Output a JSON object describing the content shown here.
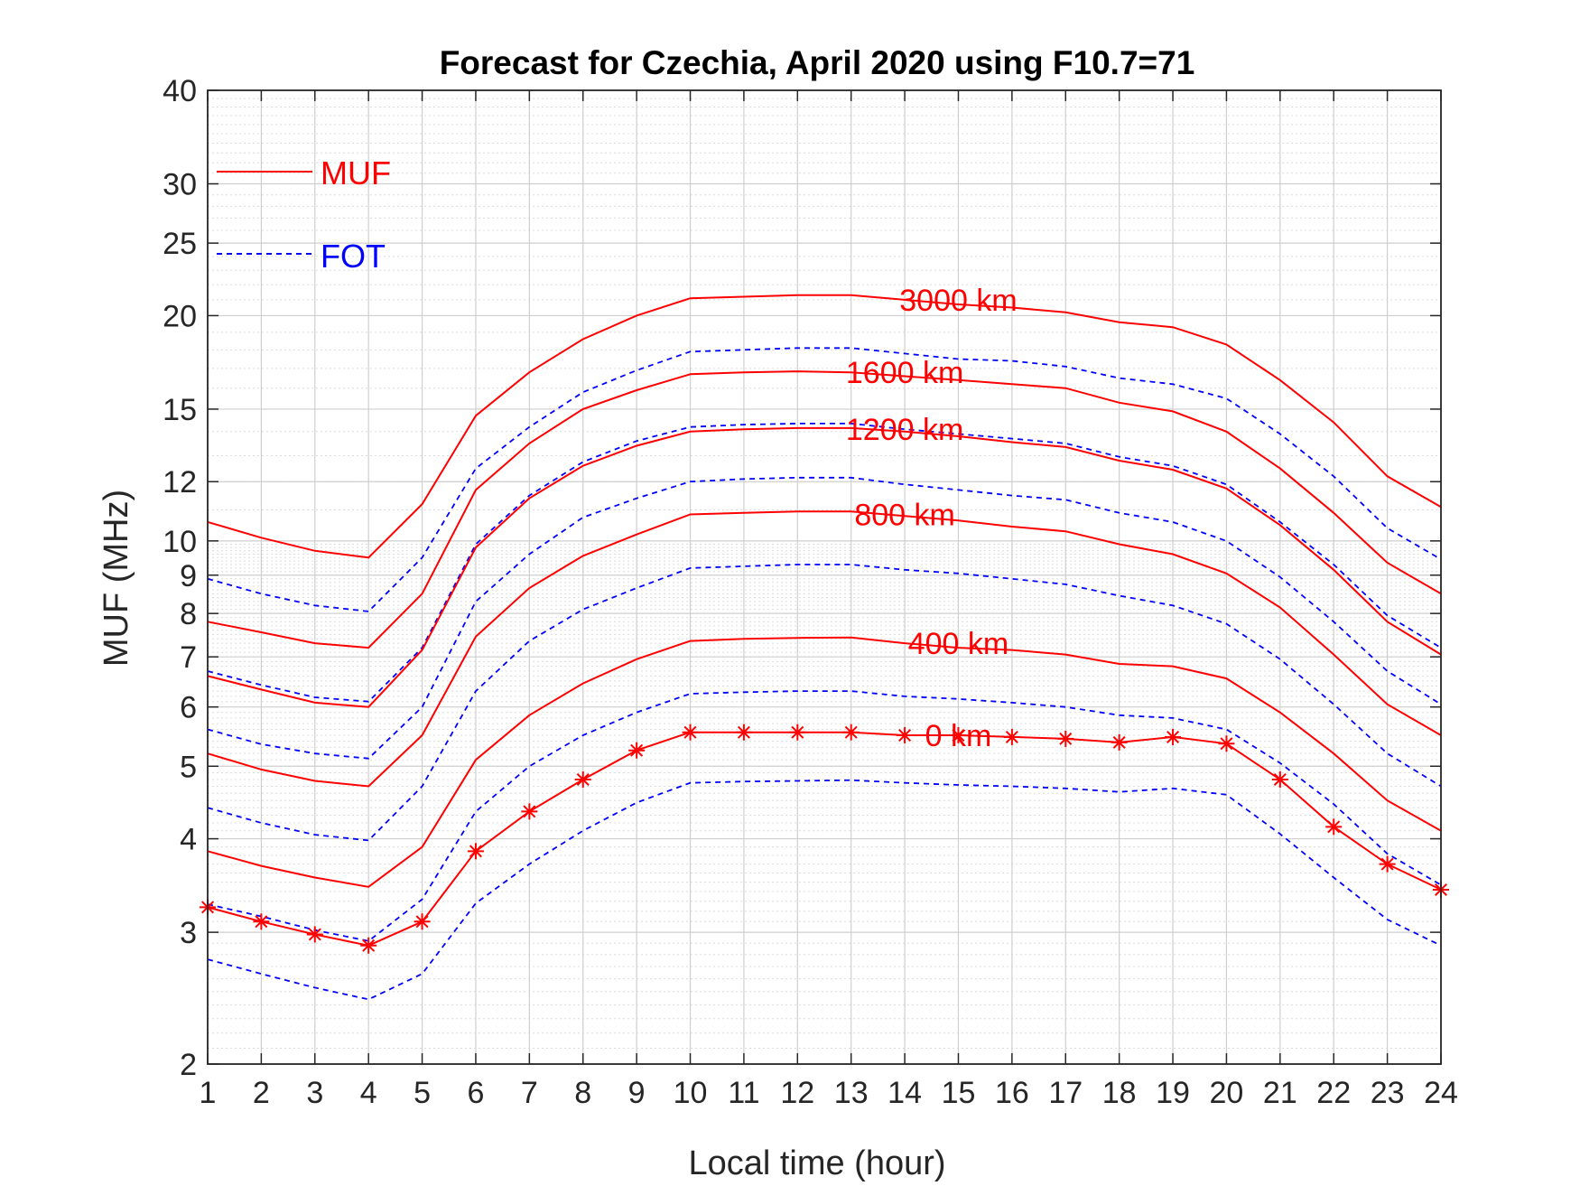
{
  "chart_data": {
    "type": "line",
    "title": "Forecast for Czechia, April 2020 using F10.7=71",
    "xlabel": "Local time (hour)",
    "ylabel": "MUF (MHz)",
    "x_scale": "linear",
    "y_scale": "log",
    "xlim": [
      1,
      24
    ],
    "ylim": [
      2,
      40
    ],
    "x_ticks": [
      "1",
      "2",
      "3",
      "4",
      "5",
      "6",
      "7",
      "8",
      "9",
      "10",
      "11",
      "12",
      "13",
      "14",
      "15",
      "16",
      "17",
      "18",
      "19",
      "20",
      "21",
      "22",
      "23",
      "24"
    ],
    "y_ticks": [
      "2",
      "3",
      "4",
      "5",
      "6",
      "7",
      "8",
      "9",
      "10",
      "12",
      "15",
      "20",
      "25",
      "30",
      "40"
    ],
    "grid": true,
    "minor_grid": true,
    "legend": {
      "placement": "top-left",
      "entries": [
        {
          "label": "MUF",
          "color": "#ff0000",
          "style": "solid"
        },
        {
          "label": "FOT",
          "color": "#0000ff",
          "style": "dashed"
        }
      ]
    },
    "x": [
      1,
      2,
      3,
      4,
      5,
      6,
      7,
      8,
      9,
      10,
      11,
      12,
      13,
      14,
      15,
      16,
      17,
      18,
      19,
      20,
      21,
      22,
      23,
      24
    ],
    "series": [
      {
        "kind": "MUF",
        "label": "3000 km",
        "values": [
          10.6,
          10.1,
          9.7,
          9.5,
          11.2,
          14.7,
          16.8,
          18.6,
          20.0,
          21.1,
          21.2,
          21.3,
          21.3,
          21.0,
          20.7,
          20.5,
          20.2,
          19.6,
          19.3,
          18.3,
          16.4,
          14.4,
          12.2,
          11.1
        ],
        "label_pos": [
          15,
          21.0
        ]
      },
      {
        "kind": "FOT",
        "values": [
          8.9,
          8.5,
          8.2,
          8.05,
          9.5,
          12.5,
          14.2,
          15.8,
          16.9,
          17.9,
          18.0,
          18.1,
          18.1,
          17.8,
          17.5,
          17.4,
          17.1,
          16.5,
          16.2,
          15.5,
          13.9,
          12.2,
          10.4,
          9.45
        ]
      },
      {
        "kind": "MUF",
        "label": "1600 km",
        "values": [
          7.8,
          7.55,
          7.3,
          7.2,
          8.5,
          11.7,
          13.5,
          15.0,
          15.9,
          16.7,
          16.8,
          16.85,
          16.8,
          16.6,
          16.4,
          16.2,
          16.0,
          15.3,
          14.9,
          14.0,
          12.5,
          10.9,
          9.35,
          8.5
        ],
        "label_pos": [
          14.0,
          16.8
        ]
      },
      {
        "kind": "FOT",
        "values": [
          6.7,
          6.42,
          6.18,
          6.1,
          7.2,
          9.9,
          11.5,
          12.75,
          13.6,
          14.2,
          14.3,
          14.35,
          14.35,
          14.1,
          13.9,
          13.7,
          13.5,
          12.95,
          12.6,
          11.9,
          10.6,
          9.3,
          7.95,
          7.2
        ]
      },
      {
        "kind": "MUF",
        "label": "1200 km",
        "values": [
          6.6,
          6.33,
          6.08,
          6.0,
          7.15,
          9.8,
          11.4,
          12.6,
          13.4,
          14.0,
          14.1,
          14.15,
          14.15,
          14.0,
          13.8,
          13.55,
          13.35,
          12.8,
          12.45,
          11.75,
          10.5,
          9.15,
          7.8,
          7.05
        ],
        "label_pos": [
          14.0,
          14.1
        ]
      },
      {
        "kind": "FOT",
        "values": [
          5.6,
          5.35,
          5.2,
          5.12,
          6.0,
          8.3,
          9.6,
          10.75,
          11.4,
          12.0,
          12.1,
          12.15,
          12.15,
          11.9,
          11.7,
          11.5,
          11.35,
          10.9,
          10.6,
          10.0,
          8.95,
          7.8,
          6.7,
          6.05
        ]
      },
      {
        "kind": "MUF",
        "label": "800 km",
        "values": [
          5.2,
          4.95,
          4.78,
          4.7,
          5.5,
          7.45,
          8.65,
          9.55,
          10.2,
          10.85,
          10.9,
          10.95,
          10.95,
          10.8,
          10.65,
          10.45,
          10.3,
          9.9,
          9.6,
          9.05,
          8.15,
          7.05,
          6.05,
          5.5
        ],
        "label_pos": [
          14.0,
          10.85
        ]
      },
      {
        "kind": "FOT",
        "values": [
          4.4,
          4.2,
          4.05,
          3.98,
          4.7,
          6.3,
          7.35,
          8.1,
          8.65,
          9.2,
          9.25,
          9.3,
          9.3,
          9.15,
          9.05,
          8.9,
          8.75,
          8.45,
          8.2,
          7.75,
          6.95,
          6.05,
          5.2,
          4.7
        ]
      },
      {
        "kind": "MUF",
        "label": "400 km",
        "values": [
          3.85,
          3.68,
          3.55,
          3.45,
          3.9,
          5.1,
          5.85,
          6.45,
          6.95,
          7.35,
          7.4,
          7.42,
          7.43,
          7.3,
          7.2,
          7.15,
          7.05,
          6.85,
          6.8,
          6.55,
          5.9,
          5.2,
          4.5,
          4.1
        ],
        "label_pos": [
          15,
          7.3
        ]
      },
      {
        "kind": "FOT",
        "values": [
          3.27,
          3.15,
          3.02,
          2.92,
          3.32,
          4.35,
          5.0,
          5.5,
          5.9,
          6.25,
          6.28,
          6.3,
          6.3,
          6.2,
          6.15,
          6.08,
          6.0,
          5.85,
          5.8,
          5.6,
          5.05,
          4.45,
          3.82,
          3.47
        ]
      },
      {
        "kind": "MUF",
        "label": "0 km",
        "markers": true,
        "values": [
          3.24,
          3.1,
          2.98,
          2.88,
          3.1,
          3.85,
          4.35,
          4.8,
          5.25,
          5.55,
          5.55,
          5.55,
          5.55,
          5.5,
          5.5,
          5.47,
          5.44,
          5.38,
          5.47,
          5.36,
          4.8,
          4.15,
          3.7,
          3.42
        ],
        "label_pos": [
          15,
          5.5
        ]
      },
      {
        "kind": "FOT",
        "values": [
          2.76,
          2.64,
          2.53,
          2.44,
          2.64,
          3.28,
          3.7,
          4.1,
          4.47,
          4.75,
          4.77,
          4.78,
          4.79,
          4.75,
          4.72,
          4.7,
          4.67,
          4.62,
          4.67,
          4.58,
          4.06,
          3.55,
          3.12,
          2.88
        ]
      }
    ]
  }
}
